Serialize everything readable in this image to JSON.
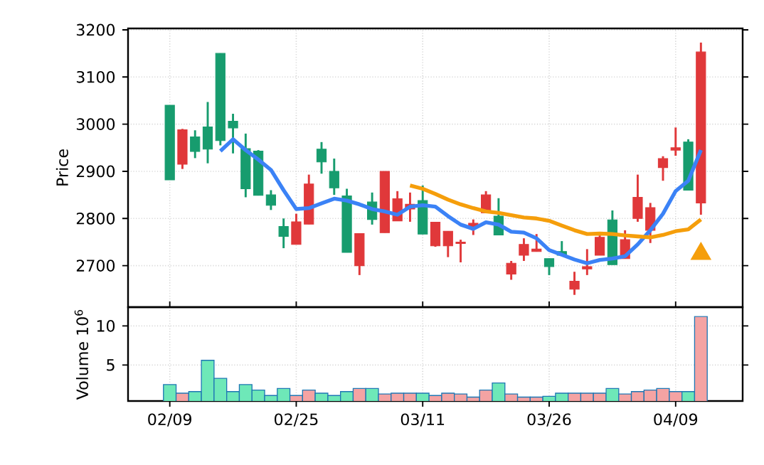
{
  "chart_data": [
    {
      "type": "candlestick",
      "ylabel": "Price",
      "grid": true,
      "tick_labels": "y",
      "categories": [
        null,
        null,
        null,
        null,
        null,
        null,
        null,
        null,
        null,
        null,
        null,
        null,
        null,
        null,
        null,
        null,
        null,
        null,
        null,
        null,
        null,
        null,
        null,
        null,
        null,
        null,
        null,
        null,
        null,
        null,
        null,
        null,
        null,
        null,
        null,
        null,
        null,
        null,
        null,
        null,
        null,
        null,
        null
      ],
      "ohlc": [
        [
          3040,
          3040,
          2882,
          2882
        ],
        [
          2915,
          2990,
          2905,
          2988
        ],
        [
          2973,
          2987,
          2928,
          2942
        ],
        [
          2994,
          3047,
          2917,
          2947
        ],
        [
          3150,
          3150,
          2955,
          2965
        ],
        [
          3006,
          3022,
          2938,
          2992
        ],
        [
          2948,
          2980,
          2845,
          2863
        ],
        [
          2943,
          2945,
          2849,
          2849
        ],
        [
          2850,
          2860,
          2818,
          2828
        ],
        [
          2783,
          2800,
          2737,
          2762
        ],
        [
          2745,
          2810,
          2745,
          2793
        ],
        [
          2788,
          2893,
          2788,
          2873
        ],
        [
          2947,
          2962,
          2895,
          2920
        ],
        [
          2900,
          2927,
          2850,
          2865
        ],
        [
          2848,
          2863,
          2728,
          2728
        ],
        [
          2700,
          2768,
          2680,
          2768
        ],
        [
          2835,
          2855,
          2787,
          2798
        ],
        [
          2770,
          2900,
          2770,
          2900
        ],
        [
          2795,
          2858,
          2795,
          2842
        ],
        [
          2820,
          2855,
          2793,
          2830
        ],
        [
          2838,
          2870,
          2767,
          2767
        ],
        [
          2742,
          2792,
          2740,
          2792
        ],
        [
          2742,
          2773,
          2718,
          2773
        ],
        [
          2747,
          2755,
          2707,
          2750
        ],
        [
          2780,
          2798,
          2765,
          2790
        ],
        [
          2812,
          2858,
          2812,
          2850
        ],
        [
          2805,
          2843,
          2765,
          2765
        ],
        [
          2682,
          2710,
          2670,
          2705
        ],
        [
          2722,
          2758,
          2710,
          2745
        ],
        [
          2730,
          2767,
          2730,
          2735
        ],
        [
          2715,
          2715,
          2680,
          2698
        ],
        [
          2730,
          2752,
          2722,
          2722
        ],
        [
          2650,
          2687,
          2638,
          2667
        ],
        [
          2693,
          2735,
          2680,
          2698
        ],
        [
          2722,
          2770,
          2722,
          2760
        ],
        [
          2797,
          2817,
          2702,
          2702
        ],
        [
          2715,
          2775,
          2715,
          2755
        ],
        [
          2800,
          2893,
          2793,
          2845
        ],
        [
          2775,
          2833,
          2748,
          2823
        ],
        [
          2908,
          2932,
          2880,
          2927
        ],
        [
          2945,
          2993,
          2933,
          2950
        ],
        [
          2962,
          2968,
          2860,
          2860
        ],
        [
          2833,
          3173,
          2808,
          3153
        ]
      ],
      "colors": [
        "#179c6e",
        "#e0383a",
        "#179c6e",
        "#179c6e",
        "#179c6e",
        "#179c6e",
        "#179c6e",
        "#179c6e",
        "#179c6e",
        "#179c6e",
        "#e0383a",
        "#e0383a",
        "#179c6e",
        "#179c6e",
        "#179c6e",
        "#e0383a",
        "#179c6e",
        "#e0383a",
        "#e0383a",
        "#e0383a",
        "#179c6e",
        "#e0383a",
        "#e0383a",
        "#e0383a",
        "#e0383a",
        "#e0383a",
        "#179c6e",
        "#e0383a",
        "#e0383a",
        "#e0383a",
        "#179c6e",
        "#179c6e",
        "#e0383a",
        "#e0383a",
        "#e0383a",
        "#179c6e",
        "#e0383a",
        "#e0383a",
        "#e0383a",
        "#e0383a",
        "#e0383a",
        "#179c6e",
        "#e0383a"
      ],
      "ylim": [
        2612,
        3203
      ],
      "yticks": [
        2700,
        2800,
        2900,
        3000,
        3100,
        3200
      ],
      "series": [
        {
          "type": "line",
          "color": "#3b82f6",
          "values": [
            null,
            null,
            null,
            null,
            2943,
            2968,
            2945,
            2925,
            2903,
            2860,
            2820,
            2822,
            2832,
            2842,
            2838,
            2830,
            2820,
            2815,
            2808,
            2825,
            2828,
            2825,
            2805,
            2787,
            2778,
            2792,
            2787,
            2772,
            2770,
            2758,
            2733,
            2723,
            2713,
            2705,
            2712,
            2715,
            2720,
            2745,
            2775,
            2810,
            2858,
            2880,
            2945
          ]
        },
        {
          "type": "line",
          "color": "#f59e0b",
          "values": [
            null,
            null,
            null,
            null,
            null,
            null,
            null,
            null,
            null,
            null,
            null,
            null,
            null,
            null,
            null,
            null,
            null,
            null,
            null,
            2870,
            2863,
            2852,
            2840,
            2830,
            2822,
            2815,
            2812,
            2807,
            2802,
            2800,
            2795,
            2785,
            2775,
            2767,
            2768,
            2767,
            2764,
            2762,
            2760,
            2765,
            2773,
            2777,
            2798
          ]
        },
        {
          "type": "scatter",
          "marker": "triangle",
          "color": "#f59e0b",
          "values": [
            null,
            null,
            null,
            null,
            null,
            null,
            null,
            null,
            null,
            null,
            null,
            null,
            null,
            null,
            null,
            null,
            null,
            null,
            null,
            null,
            null,
            null,
            null,
            null,
            null,
            null,
            null,
            null,
            null,
            null,
            null,
            null,
            null,
            null,
            null,
            null,
            null,
            null,
            null,
            null,
            null,
            null,
            2725
          ]
        }
      ]
    },
    {
      "type": "bar",
      "ylabel": "Volume  10$^{6}$",
      "grid": true,
      "categories": [
        "02/09",
        null,
        null,
        null,
        null,
        null,
        null,
        null,
        null,
        null,
        "02/25",
        null,
        null,
        null,
        null,
        null,
        null,
        null,
        null,
        null,
        "03/11",
        null,
        null,
        null,
        null,
        null,
        null,
        null,
        null,
        null,
        "03/26",
        null,
        null,
        null,
        null,
        null,
        null,
        null,
        null,
        null,
        "04/09",
        null,
        null
      ],
      "values": [
        2.5,
        1.4,
        1.6,
        5.6,
        3.3,
        1.6,
        2.5,
        1.8,
        1.1,
        2.0,
        1.1,
        1.8,
        1.4,
        1.1,
        1.6,
        2.0,
        2.0,
        1.3,
        1.4,
        1.4,
        1.4,
        1.1,
        1.4,
        1.3,
        0.9,
        1.8,
        2.7,
        1.3,
        0.9,
        0.9,
        1.0,
        1.4,
        1.4,
        1.4,
        1.4,
        2.0,
        1.3,
        1.6,
        1.8,
        2.0,
        1.6,
        1.6,
        11.2
      ],
      "colors": [
        "#6ee8b8",
        "#f4a3a3",
        "#6ee8b8",
        "#6ee8b8",
        "#6ee8b8",
        "#6ee8b8",
        "#6ee8b8",
        "#6ee8b8",
        "#6ee8b8",
        "#6ee8b8",
        "#f4a3a3",
        "#f4a3a3",
        "#6ee8b8",
        "#6ee8b8",
        "#6ee8b8",
        "#f4a3a3",
        "#6ee8b8",
        "#f4a3a3",
        "#f4a3a3",
        "#f4a3a3",
        "#6ee8b8",
        "#f4a3a3",
        "#f4a3a3",
        "#f4a3a3",
        "#f4a3a3",
        "#f4a3a3",
        "#6ee8b8",
        "#f4a3a3",
        "#f4a3a3",
        "#f4a3a3",
        "#6ee8b8",
        "#6ee8b8",
        "#f4a3a3",
        "#f4a3a3",
        "#f4a3a3",
        "#6ee8b8",
        "#f4a3a3",
        "#f4a3a3",
        "#f4a3a3",
        "#f4a3a3",
        "#f4a3a3",
        "#6ee8b8",
        "#f4a3a3"
      ],
      "ylim": [
        0.4,
        12.4
      ],
      "yticks": [
        5,
        10
      ]
    }
  ]
}
